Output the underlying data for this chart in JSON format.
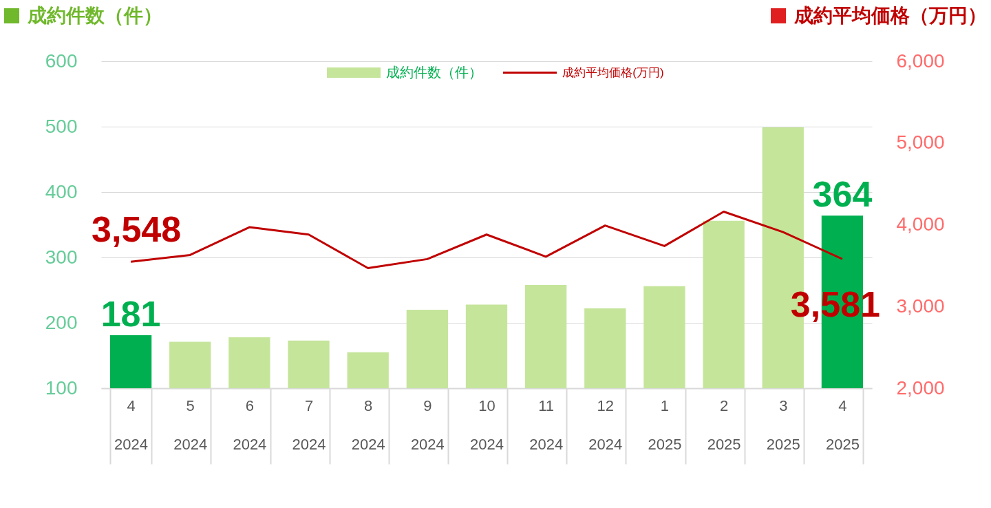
{
  "chart_data": {
    "type": "bar",
    "ylabel": "成約件数（件）",
    "y2label": "成約平均価格（万円）",
    "categories": [
      "4\n2024",
      "5\n2024",
      "6\n2024",
      "7\n2024",
      "8\n2024",
      "9\n2024",
      "10\n2024",
      "11\n2024",
      "12\n2024",
      "1\n2025",
      "2\n2025",
      "3\n2025",
      "4\n2025"
    ],
    "series": [
      {
        "name": "成約件数（件）",
        "color": "#c5e59b",
        "colors": [
          "#00b050",
          "#c5e59b",
          "#c5e59b",
          "#c5e59b",
          "#c5e59b",
          "#c5e59b",
          "#c5e59b",
          "#c5e59b",
          "#c5e59b",
          "#c5e59b",
          "#c5e59b",
          "#c5e59b",
          "#00b050"
        ],
        "values": [
          181,
          171,
          178,
          173,
          155,
          220,
          228,
          258,
          222,
          256,
          356,
          499,
          364
        ],
        "value_labels": [
          "181",
          null,
          null,
          null,
          null,
          null,
          null,
          null,
          null,
          null,
          null,
          null,
          "364"
        ]
      },
      {
        "name": "成約平均価格(万円)",
        "type": "line",
        "axis": "y2",
        "color": "#c00000",
        "values": [
          3548,
          3630,
          3970,
          3880,
          3470,
          3580,
          3880,
          3610,
          3990,
          3740,
          4160,
          3910,
          3581
        ],
        "value_labels": [
          "3,548",
          null,
          null,
          null,
          null,
          null,
          null,
          null,
          null,
          null,
          null,
          null,
          "3,581"
        ]
      }
    ],
    "ylim": [
      100,
      600
    ],
    "yticks": [
      100,
      200,
      300,
      400,
      500,
      600
    ],
    "y2lim": [
      2000,
      6000
    ],
    "y2ticks": [
      {
        "value": 2000,
        "label": "2,000"
      },
      {
        "value": 3000,
        "label": "3,000"
      },
      {
        "value": 4000,
        "label": "4,000"
      },
      {
        "value": 5000,
        "label": "5,000"
      },
      {
        "value": 6000,
        "label": "6,000"
      }
    ],
    "grid": "y",
    "legend": "top"
  }
}
